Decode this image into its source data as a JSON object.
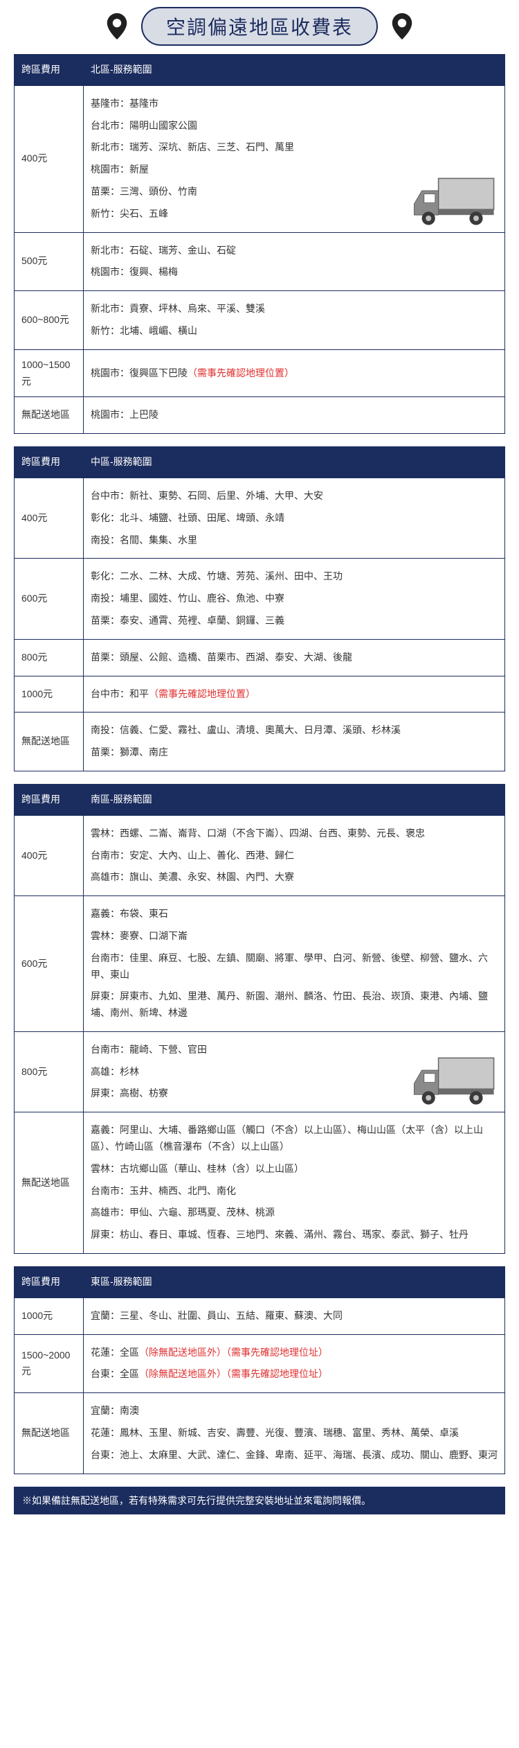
{
  "title": "空調偏遠地區收費表",
  "colors": {
    "header_bg": "#1b2c5e",
    "header_text": "#ffffff",
    "border": "#1b2c5e",
    "title_fill": "#d8dce5",
    "note_red": "#e03030"
  },
  "regions": [
    {
      "fee_header": "跨區費用",
      "area_header": "北區-服務範圍",
      "truck_row": 0,
      "rows": [
        {
          "fee": "400元",
          "lines": [
            "基隆市：基隆市",
            "台北市：陽明山國家公園",
            "新北市：瑞芳、深坑、新店、三芝、石門、萬里",
            "桃園市：新屋",
            "苗栗：三灣、頭份、竹南",
            "新竹：尖石、五峰"
          ]
        },
        {
          "fee": "500元",
          "lines": [
            "新北市：石碇、瑞芳、金山、石碇",
            "桃園市：復興、楊梅"
          ]
        },
        {
          "fee": "600~800元",
          "lines": [
            "新北市：貢寮、坪林、烏來、平溪、雙溪",
            "新竹：北埔、峨嵋、橫山"
          ]
        },
        {
          "fee": "1000~1500元",
          "lines": [
            {
              "text": "桃園市：復興區下巴陵",
              "note": "（需事先確認地理位置）"
            }
          ]
        },
        {
          "fee": "無配送地區",
          "lines": [
            "桃園市：上巴陵"
          ]
        }
      ]
    },
    {
      "fee_header": "跨區費用",
      "area_header": "中區-服務範圍",
      "rows": [
        {
          "fee": "400元",
          "lines": [
            "台中市：新社、東勢、石岡、后里、外埔、大甲、大安",
            "彰化：北斗、埔鹽、社頭、田尾、埤頭、永靖",
            "南投：名間、集集、水里"
          ]
        },
        {
          "fee": "600元",
          "lines": [
            "彰化：二水、二林、大成、竹塘、芳苑、溪州、田中、王功",
            "南投：埔里、國姓、竹山、鹿谷、魚池、中寮",
            "苗栗：泰安、通霄、苑裡、卓蘭、銅鑼、三義"
          ]
        },
        {
          "fee": "800元",
          "lines": [
            "苗栗：頭屋、公館、造橋、苗栗市、西湖、泰安、大湖、後龍"
          ]
        },
        {
          "fee": "1000元",
          "lines": [
            {
              "text": "台中市：和平",
              "note": "（需事先確認地理位置）"
            }
          ]
        },
        {
          "fee": "無配送地區",
          "lines": [
            "南投：信義、仁愛、霧社、盧山、清境、奧萬大、日月潭、溪頭、杉林溪",
            "苗栗：獅潭、南庄"
          ]
        }
      ]
    },
    {
      "fee_header": "跨區費用",
      "area_header": "南區-服務範圍",
      "truck_row": 2,
      "rows": [
        {
          "fee": "400元",
          "lines": [
            "雲林：西螺、二崙、崙背、口湖（不含下崙）、四湖、台西、東勢、元長、褒忠",
            "台南市：安定、大內、山上、善化、西港、歸仁",
            "高雄市：旗山、美濃、永安、林園、內門、大寮"
          ]
        },
        {
          "fee": "600元",
          "lines": [
            "嘉義：布袋、東石",
            "雲林：麥寮、口湖下崙",
            "台南市：佳里、麻豆、七股、左鎮、關廟、將軍、學甲、白河、新營、後壁、柳營、鹽水、六甲、東山",
            "屏東：屏東市、九如、里港、萬丹、新園、潮州、麟洛、竹田、長治、崁頂、東港、內埔、鹽埔、南州、新埤、林邊"
          ]
        },
        {
          "fee": "800元",
          "lines": [
            "台南市：龍崎、下營、官田",
            "高雄：杉林",
            "屏東：高樹、枋寮"
          ]
        },
        {
          "fee": "無配送地區",
          "lines": [
            "嘉義：阿里山、大埔、番路鄉山區（觸口（不含）以上山區）、梅山山區（太平（含）以上山區）、竹崎山區（樵音瀑布（不含）以上山區）",
            "雲林：古坑鄉山區（華山、桂林（含）以上山區）",
            "台南市：玉井、楠西、北門、南化",
            "高雄市：甲仙、六龜、那瑪夏、茂林、桃源",
            "屏東：枋山、春日、車城、恆春、三地門、來義、滿州、霧台、瑪家、泰武、獅子、牡丹"
          ]
        }
      ]
    },
    {
      "fee_header": "跨區費用",
      "area_header": "東區-服務範圍",
      "rows": [
        {
          "fee": "1000元",
          "lines": [
            "宜蘭：三星、冬山、壯圍、員山、五結、羅東、蘇澳、大同"
          ]
        },
        {
          "fee": "1500~2000元",
          "lines": [
            {
              "text": "花蓮：全區",
              "note": "（除無配送地區外）（需事先確認地理位址）"
            },
            {
              "text": "台東：全區",
              "note": "（除無配送地區外）（需事先確認地理位址）"
            }
          ]
        },
        {
          "fee": "無配送地區",
          "lines": [
            "宜蘭：南澳",
            "花蓮：鳳林、玉里、新城、吉安、壽豐、光復、豐濱、瑞穗、富里、秀林、萬榮、卓溪",
            "台東：池上、太麻里、大武、達仁、金鋒、卑南、延平、海瑞、長濱、成功、關山、鹿野、東河"
          ]
        }
      ]
    }
  ],
  "footnote": "※如果備註無配送地區，若有特殊需求可先行提供完整安裝地址並來電詢問報價。"
}
